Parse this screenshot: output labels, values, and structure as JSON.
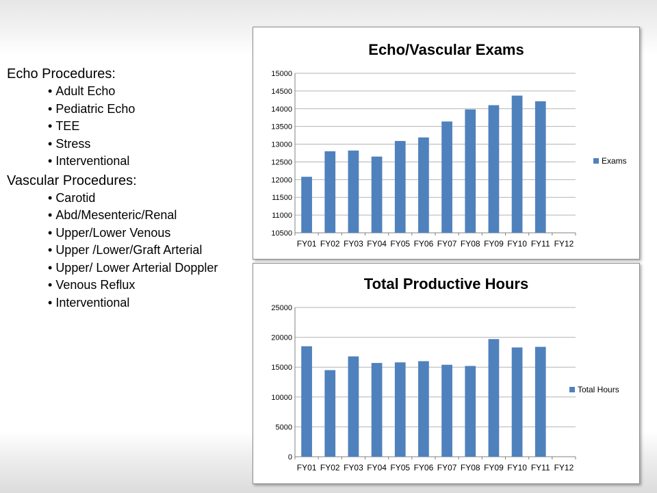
{
  "echo": {
    "heading": "Echo Procedures:",
    "items": [
      "Adult Echo",
      "Pediatric Echo",
      "TEE",
      "Stress",
      "Interventional"
    ]
  },
  "vascular": {
    "heading": "Vascular Procedures:",
    "items": [
      "Carotid",
      "Abd/Mesenteric/Renal",
      "Upper/Lower Venous",
      "Upper /Lower/Graft Arterial",
      "Upper/ Lower Arterial Doppler",
      "Venous Reflux",
      "Interventional"
    ]
  },
  "colors": {
    "bar": "#4f81bd",
    "grid": "#b3b3b3"
  },
  "chart_data": [
    {
      "type": "bar",
      "title": "Echo/Vascular Exams",
      "categories": [
        "FY01",
        "FY02",
        "FY03",
        "FY04",
        "FY05",
        "FY06",
        "FY07",
        "FY08",
        "FY09",
        "FY10",
        "FY11",
        "FY12"
      ],
      "series": [
        {
          "name": "Exams",
          "values": [
            12080,
            12800,
            12820,
            12650,
            13090,
            13190,
            13640,
            13980,
            14100,
            14370,
            14210,
            null
          ]
        }
      ],
      "ylim": [
        10500,
        15000
      ],
      "yticks": [
        10500,
        11000,
        11500,
        12000,
        12500,
        13000,
        13500,
        14000,
        14500,
        15000
      ],
      "grid": true,
      "legend": "right"
    },
    {
      "type": "bar",
      "title": "Total Productive Hours",
      "categories": [
        "FY01",
        "FY02",
        "FY03",
        "FY04",
        "FY05",
        "FY06",
        "FY07",
        "FY08",
        "FY09",
        "FY10",
        "FY11",
        "FY12"
      ],
      "series": [
        {
          "name": "Total Hours",
          "values": [
            18500,
            14500,
            16800,
            15700,
            15800,
            16000,
            15400,
            15200,
            19700,
            18300,
            18400,
            null
          ]
        }
      ],
      "ylim": [
        0,
        25000
      ],
      "yticks": [
        0,
        5000,
        10000,
        15000,
        20000,
        25000
      ],
      "grid": true,
      "legend": "right"
    }
  ]
}
